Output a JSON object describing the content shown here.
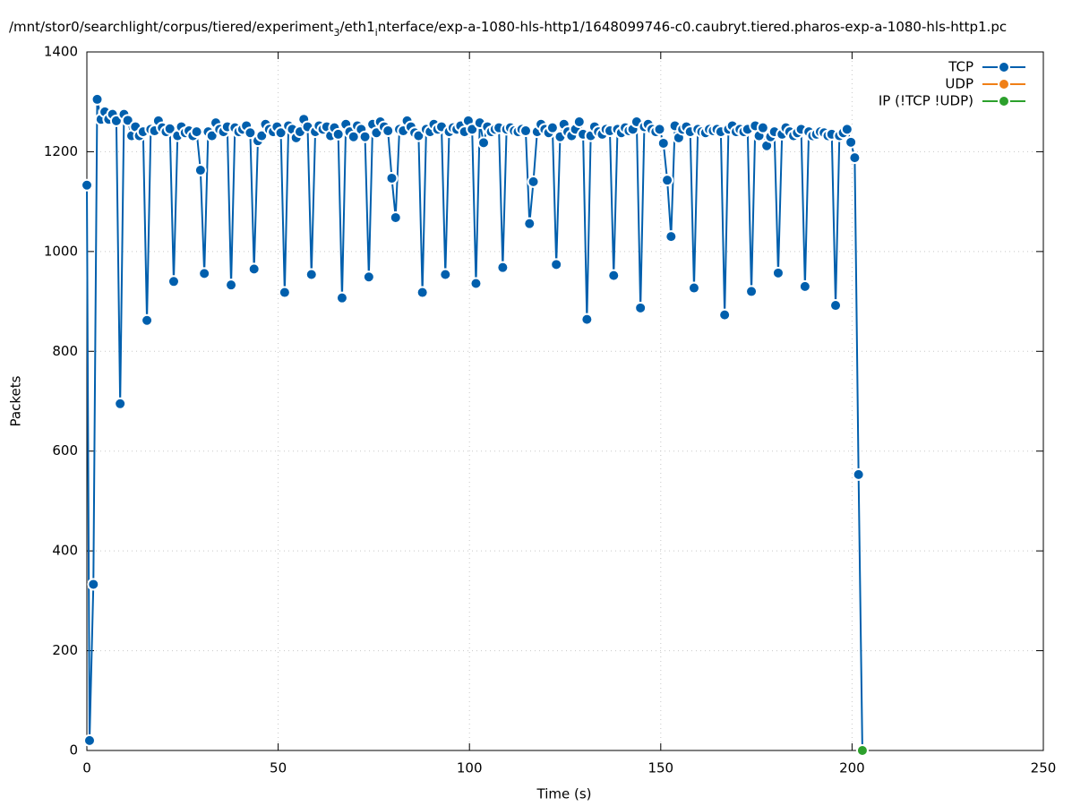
{
  "chart_data": {
    "type": "line",
    "title": [
      "/mnt/stor0/searchlight/corpus/tiered/experiment",
      "3",
      "/eth1",
      "i",
      "nterface/exp-a-1080-hls-http1/1648099746-c0.caubryt.tiered.pharos-exp-a-1080-hls-http1.pc"
    ],
    "xlabel": "Time (s)",
    "ylabel": "Packets",
    "xlim": [
      0,
      250
    ],
    "xticks": [
      0,
      50,
      100,
      150,
      200,
      250
    ],
    "ylim": [
      0,
      1400
    ],
    "yticks": [
      0,
      200,
      400,
      600,
      800,
      1000,
      1200,
      1400
    ],
    "grid": true,
    "legend": "top-right",
    "series": [
      {
        "name": "TCP",
        "color": "#005fad",
        "x": [
          0,
          0.7,
          1.7,
          2.7,
          3.7,
          4.7,
          5.7,
          6.7,
          7.7,
          8.7,
          9.7,
          10.7,
          11.7,
          12.7,
          13.7,
          14.7,
          15.7,
          16.7,
          17.7,
          18.7,
          19.7,
          20.7,
          21.7,
          22.7,
          23.7,
          24.7,
          25.7,
          26.7,
          27.7,
          28.7,
          29.7,
          30.7,
          31.7,
          32.7,
          33.7,
          34.7,
          35.7,
          36.7,
          37.7,
          38.7,
          39.7,
          40.7,
          41.7,
          42.7,
          43.7,
          44.7,
          45.7,
          46.7,
          47.7,
          48.7,
          49.7,
          50.7,
          51.7,
          52.7,
          53.7,
          54.7,
          55.7,
          56.7,
          57.7,
          58.7,
          59.7,
          60.7,
          61.7,
          62.7,
          63.7,
          64.7,
          65.7,
          66.7,
          67.7,
          68.7,
          69.7,
          70.7,
          71.7,
          72.7,
          73.7,
          74.7,
          75.7,
          76.7,
          77.7,
          78.7,
          79.7,
          80.7,
          81.7,
          82.7,
          83.7,
          84.7,
          85.7,
          86.7,
          87.7,
          88.7,
          89.7,
          90.7,
          91.7,
          92.7,
          93.7,
          94.7,
          95.7,
          96.7,
          97.7,
          98.7,
          99.7,
          100.7,
          101.7,
          102.7,
          103.7,
          104.7,
          105.7,
          106.7,
          107.7,
          108.7,
          109.7,
          110.7,
          111.7,
          112.7,
          113.7,
          114.7,
          115.7,
          116.7,
          117.7,
          118.7,
          119.7,
          120.7,
          121.7,
          122.7,
          123.7,
          124.7,
          125.7,
          126.7,
          127.7,
          128.7,
          129.7,
          130.7,
          131.7,
          132.7,
          133.7,
          134.7,
          135.7,
          136.7,
          137.7,
          138.7,
          139.7,
          140.7,
          141.7,
          142.7,
          143.7,
          144.7,
          145.7,
          146.7,
          147.7,
          148.7,
          149.7,
          150.7,
          151.7,
          152.7,
          153.7,
          154.7,
          155.7,
          156.7,
          157.7,
          158.7,
          159.7,
          160.7,
          161.7,
          162.7,
          163.7,
          164.7,
          165.7,
          166.7,
          167.7,
          168.7,
          169.7,
          170.7,
          171.7,
          172.7,
          173.7,
          174.7,
          175.7,
          176.7,
          177.7,
          178.7,
          179.7,
          180.7,
          181.7,
          182.7,
          183.7,
          184.7,
          185.7,
          186.7,
          187.7,
          188.7,
          189.7,
          190.7,
          191.7,
          192.7,
          193.7,
          194.7,
          195.7,
          196.7,
          197.7,
          198.7,
          199.7,
          200.7,
          201.7,
          202.7
        ],
        "values": [
          1133,
          20,
          333,
          1305,
          1265,
          1280,
          1265,
          1275,
          1262,
          695,
          1275,
          1263,
          1232,
          1250,
          1232,
          1240,
          862,
          1245,
          1242,
          1262,
          1248,
          1240,
          1246,
          940,
          1232,
          1250,
          1238,
          1242,
          1232,
          1240,
          1163,
          956,
          1240,
          1232,
          1258,
          1245,
          1240,
          1250,
          933,
          1248,
          1240,
          1245,
          1252,
          1238,
          965,
          1222,
          1232,
          1255,
          1245,
          1240,
          1250,
          1238,
          918,
          1252,
          1245,
          1228,
          1240,
          1265,
          1250,
          954,
          1240,
          1252,
          1245,
          1250,
          1232,
          1248,
          1235,
          907,
          1255,
          1240,
          1230,
          1252,
          1245,
          1230,
          949,
          1255,
          1238,
          1260,
          1250,
          1242,
          1147,
          1068,
          1245,
          1242,
          1262,
          1250,
          1238,
          1232,
          918,
          1245,
          1240,
          1255,
          1245,
          1250,
          954,
          1240,
          1248,
          1245,
          1252,
          1240,
          1262,
          1245,
          936,
          1258,
          1218,
          1250,
          1240,
          1245,
          1248,
          968,
          1245,
          1248,
          1242,
          1240,
          1245,
          1242,
          1056,
          1140,
          1240,
          1255,
          1245,
          1238,
          1248,
          974,
          1230,
          1255,
          1240,
          1232,
          1245,
          1260,
          1235,
          864,
          1232,
          1250,
          1240,
          1235,
          1245,
          1242,
          952,
          1245,
          1238,
          1248,
          1242,
          1245,
          1260,
          887,
          1250,
          1255,
          1245,
          1240,
          1245,
          1217,
          1143,
          1030,
          1252,
          1228,
          1245,
          1250,
          1240,
          927,
          1245,
          1240,
          1238,
          1245,
          1242,
          1245,
          1240,
          873,
          1245,
          1252,
          1240,
          1245,
          1240,
          1245,
          920,
          1252,
          1232,
          1248,
          1212,
          1230,
          1240,
          957,
          1235,
          1248,
          1240,
          1232,
          1238,
          1245,
          930,
          1240,
          1232,
          1235,
          1240,
          1238,
          1232,
          1235,
          892,
          1232,
          1238,
          1245,
          1219,
          1188,
          553,
          0
        ]
      },
      {
        "name": "UDP",
        "color": "#f07f16",
        "x": [],
        "values": []
      },
      {
        "name": "IP (!TCP  !UDP)",
        "color": "#2ca02c",
        "x": [
          202.7
        ],
        "values": [
          0
        ]
      }
    ]
  }
}
